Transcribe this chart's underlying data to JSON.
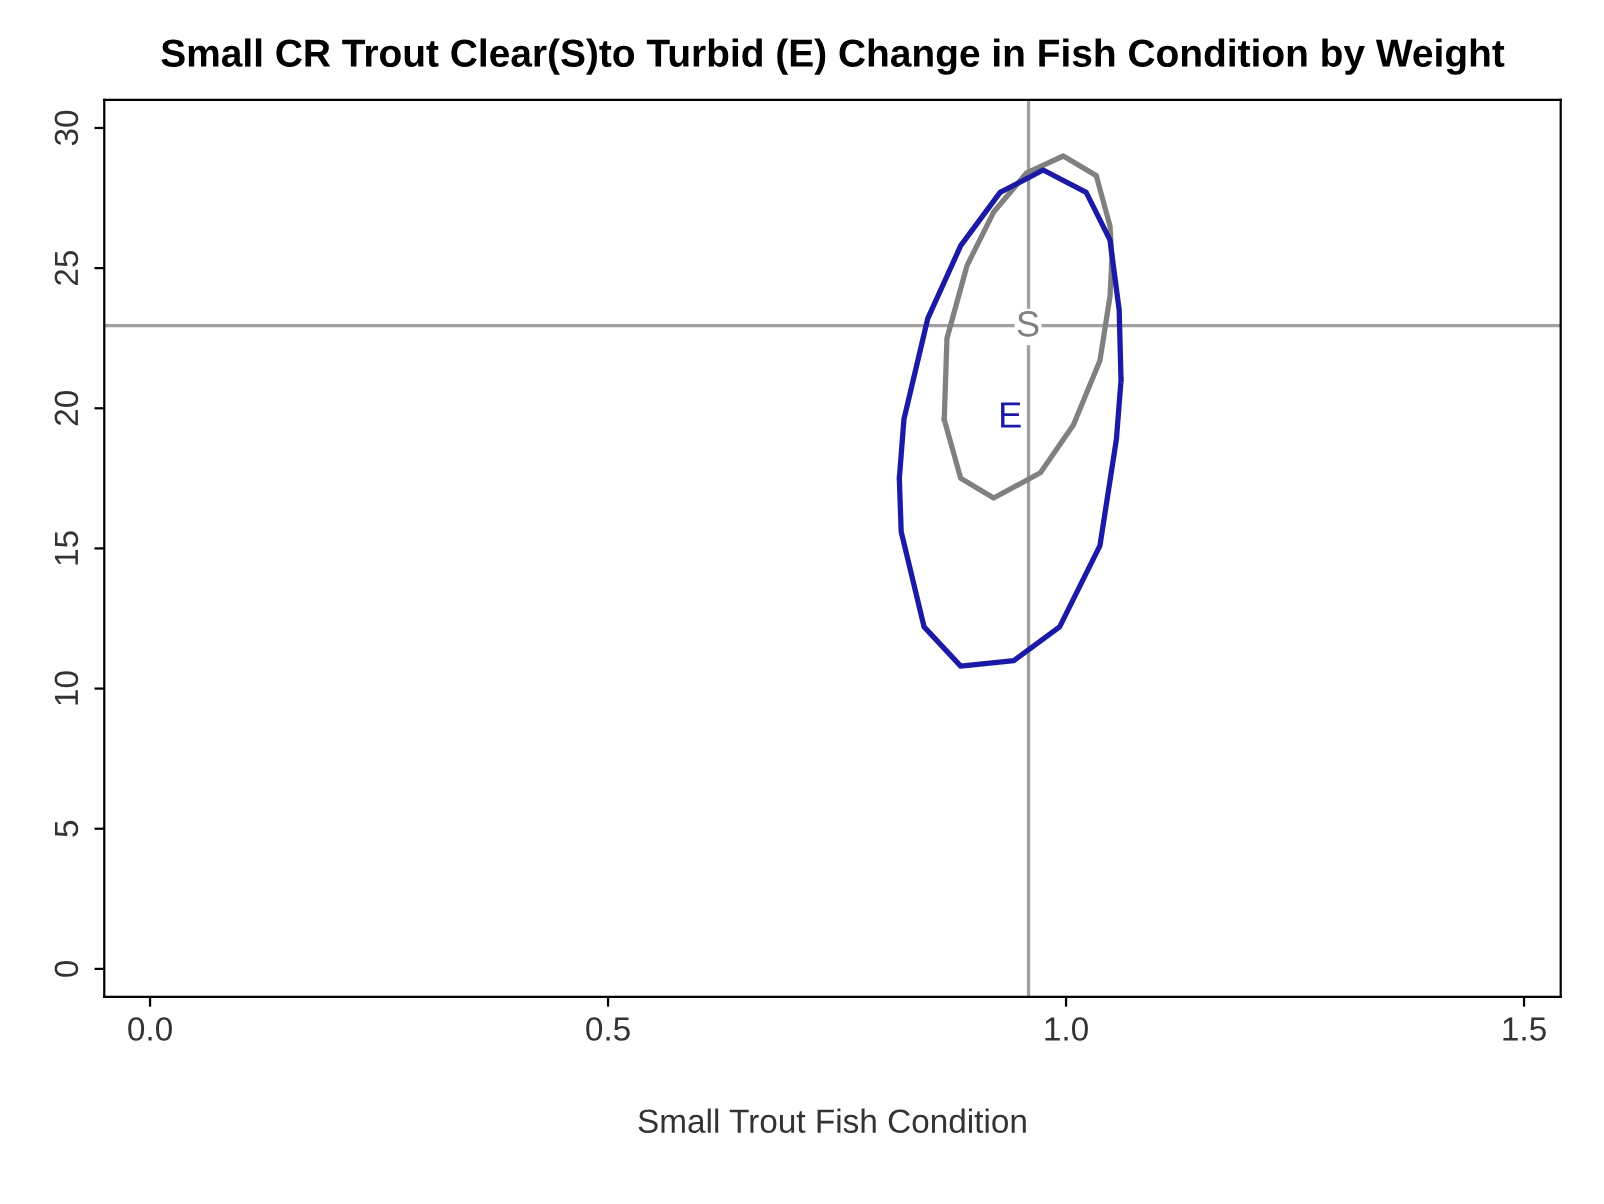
{
  "chart_data": {
    "type": "line",
    "title": "Small CR Trout Clear(S)to Turbid (E) Change in Fish Condition by Weight",
    "xlabel": "Small Trout Fish Condition",
    "xlim": [
      -0.05,
      1.54
    ],
    "ylim": [
      -1,
      31
    ],
    "xticks": [
      {
        "value": 0,
        "label": "0.0"
      },
      0.5,
      {
        "value": 1,
        "label": "1.0"
      },
      1.5
    ],
    "yticks": [
      0,
      5,
      10,
      15,
      20,
      25,
      30
    ],
    "grid": false,
    "legend": false,
    "marker": "none",
    "line_style": "solid",
    "series": [
      {
        "color": "#808080",
        "x": [
          0.867,
          0.87,
          0.892,
          0.921,
          0.957,
          0.997,
          1.033,
          1.048,
          1.05,
          null,
          0.867,
          0.885,
          0.921,
          0.972,
          1.008,
          1.037,
          1.048,
          1.05
        ],
        "values": [
          19.6,
          22.5,
          25.1,
          27.0,
          28.4,
          29.0,
          28.3,
          26.5,
          25.3,
          null,
          19.6,
          17.5,
          16.8,
          17.7,
          19.4,
          21.7,
          24.0,
          25.3
        ]
      },
      {
        "color": "#1a1aa6",
        "x": [
          0.818,
          0.823,
          0.849,
          0.885,
          0.928,
          0.975,
          1.022,
          1.048,
          1.058,
          1.06,
          null,
          0.818,
          0.82,
          0.845,
          0.885,
          0.943,
          0.993,
          1.037,
          1.055,
          1.06
        ],
        "values": [
          17.5,
          19.6,
          23.2,
          25.8,
          27.7,
          28.5,
          27.7,
          26.0,
          23.5,
          21.0,
          null,
          17.5,
          15.6,
          12.2,
          10.8,
          11.0,
          12.2,
          15.1,
          18.9,
          21.0
        ]
      }
    ],
    "ref_lines": [
      {
        "axis": "x",
        "value": 0.959,
        "color": "#a0a0a0"
      },
      {
        "axis": "y",
        "value": 22.95,
        "color": "#a0a0a0"
      }
    ],
    "annotations": [
      "S",
      "E"
    ]
  }
}
